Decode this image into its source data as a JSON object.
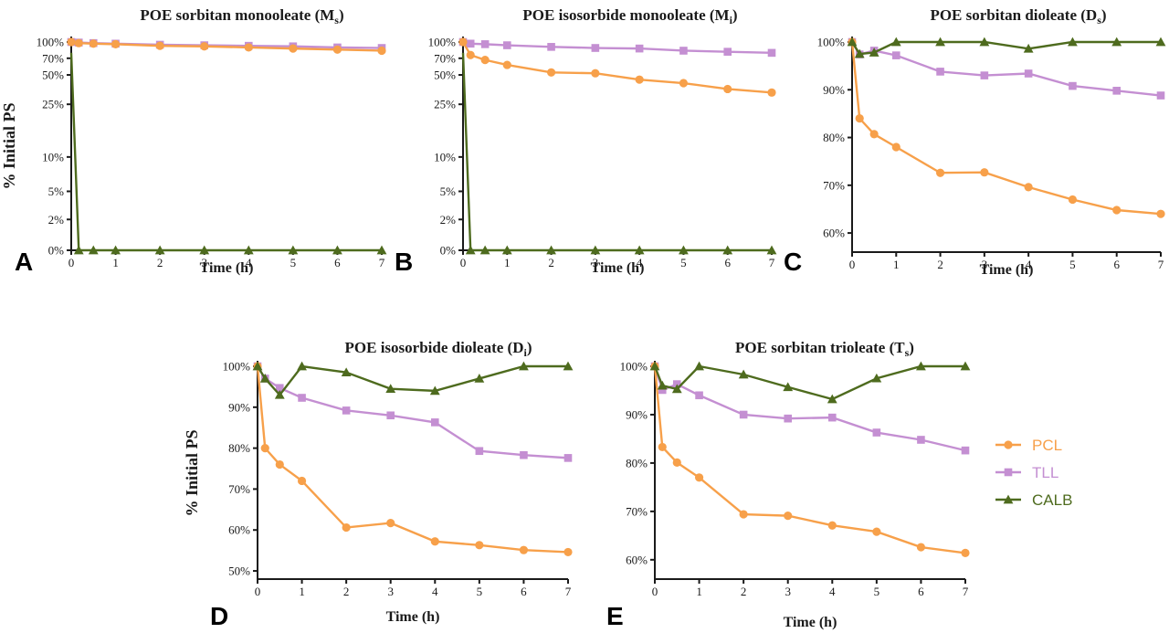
{
  "chart_data": [
    {
      "panel": "A",
      "type": "line",
      "title": "POE sorbitan monooleate (M",
      "title_sub": "s",
      "title_end": ")",
      "xlabel": "Time (h)",
      "ylabel": "% Initial PS",
      "xlim": [
        0,
        7
      ],
      "ylim_labels": [
        "0%",
        "2%",
        "5%",
        "10%",
        "25%",
        "50%",
        "70%",
        "100%"
      ],
      "y_scale": "custom",
      "x": [
        0,
        0.17,
        0.5,
        1,
        2,
        3,
        4,
        5,
        6,
        7
      ],
      "series": [
        {
          "name": "PCL",
          "values": [
            100,
            98,
            97,
            96,
            93,
            92,
            90,
            88,
            86,
            84
          ]
        },
        {
          "name": "TLL",
          "values": [
            100,
            99,
            98,
            97,
            95,
            94,
            93,
            92,
            90,
            89
          ]
        },
        {
          "name": "CALB",
          "values": [
            80,
            0,
            0,
            0,
            0,
            0,
            0,
            0,
            0,
            0
          ]
        }
      ]
    },
    {
      "panel": "B",
      "type": "line",
      "title": "POE isosorbide monooleate (M",
      "title_sub": "i",
      "title_end": ")",
      "xlabel": "Time (h)",
      "ylabel": "",
      "xlim": [
        0,
        7
      ],
      "ylim_labels": [
        "0%",
        "2%",
        "5%",
        "10%",
        "25%",
        "50%",
        "70%",
        "100%"
      ],
      "y_scale": "custom",
      "x": [
        0,
        0.17,
        0.5,
        1,
        2,
        3,
        4,
        5,
        6,
        7
      ],
      "series": [
        {
          "name": "PCL",
          "values": [
            100,
            76,
            68,
            62,
            53,
            52,
            46,
            43,
            38,
            35
          ]
        },
        {
          "name": "TLL",
          "values": [
            100,
            97,
            96,
            94,
            91,
            89,
            88,
            84,
            82,
            80
          ]
        },
        {
          "name": "CALB",
          "values": [
            80,
            0,
            0,
            0,
            0,
            0,
            0,
            0,
            0,
            0
          ]
        }
      ]
    },
    {
      "panel": "C",
      "type": "line",
      "title": "POE sorbitan dioleate (D",
      "title_sub": "s",
      "title_end": ")",
      "xlabel": "Time (h)",
      "ylabel": "",
      "xlim": [
        0,
        7
      ],
      "ylim": [
        56,
        100
      ],
      "y_ticks": [
        60,
        70,
        80,
        90,
        100
      ],
      "x": [
        0,
        0.17,
        0.5,
        1,
        2,
        3,
        4,
        5,
        6,
        7
      ],
      "series": [
        {
          "name": "PCL",
          "values": [
            100,
            84,
            80.7,
            78,
            72.6,
            72.7,
            69.6,
            67,
            64.8,
            64
          ]
        },
        {
          "name": "TLL",
          "values": [
            100,
            97.4,
            98.2,
            97.2,
            93.8,
            93,
            93.4,
            90.8,
            89.8,
            88.8
          ]
        },
        {
          "name": "CALB",
          "values": [
            100,
            97.5,
            97.8,
            100,
            100,
            100,
            98.6,
            100,
            100,
            100
          ]
        }
      ]
    },
    {
      "panel": "D",
      "type": "line",
      "title": "POE isosorbide dioleate (D",
      "title_sub": "i",
      "title_end": ")",
      "xlabel": "Time (h)",
      "ylabel": "% Initial PS",
      "xlim": [
        0,
        7
      ],
      "ylim": [
        48,
        100
      ],
      "y_ticks": [
        50,
        60,
        70,
        80,
        90,
        100
      ],
      "x": [
        0,
        0.17,
        0.5,
        1,
        2,
        3,
        4,
        5,
        6,
        7
      ],
      "series": [
        {
          "name": "PCL",
          "values": [
            100,
            80,
            76,
            72,
            60.6,
            61.7,
            57.2,
            56.3,
            55.1,
            54.6
          ]
        },
        {
          "name": "TLL",
          "values": [
            100,
            97,
            94.7,
            92.3,
            89.2,
            88,
            86.3,
            79.3,
            78.3,
            77.6
          ]
        },
        {
          "name": "CALB",
          "values": [
            100,
            97,
            93,
            100,
            98.5,
            94.5,
            94,
            97,
            100,
            100
          ]
        }
      ]
    },
    {
      "panel": "E",
      "type": "line",
      "title": "POE sorbitan trioleate (T",
      "title_sub": "s",
      "title_end": ")",
      "xlabel": "Time (h)",
      "ylabel": "",
      "xlim": [
        0,
        7
      ],
      "ylim": [
        56,
        100
      ],
      "y_ticks": [
        60,
        70,
        80,
        90,
        100
      ],
      "x": [
        0,
        0.17,
        0.5,
        1,
        2,
        3,
        4,
        5,
        6,
        7
      ],
      "series": [
        {
          "name": "PCL",
          "values": [
            100,
            83.3,
            80.1,
            77,
            69.4,
            69.1,
            67.1,
            65.8,
            62.6,
            61.4
          ]
        },
        {
          "name": "TLL",
          "values": [
            100,
            95.1,
            96.3,
            94,
            90,
            89.2,
            89.4,
            86.3,
            84.8,
            82.6
          ]
        },
        {
          "name": "CALB",
          "values": [
            100,
            96,
            95.3,
            100,
            98.3,
            95.7,
            93.2,
            97.5,
            100,
            100
          ]
        }
      ]
    }
  ],
  "legend": {
    "placement": "right",
    "entries": [
      {
        "name": "PCL",
        "color": "#f7a04a",
        "marker": "circle"
      },
      {
        "name": "TLL",
        "color": "#c48fd2",
        "marker": "square"
      },
      {
        "name": "CALB",
        "color": "#4e6b1e",
        "marker": "triangle"
      }
    ]
  }
}
